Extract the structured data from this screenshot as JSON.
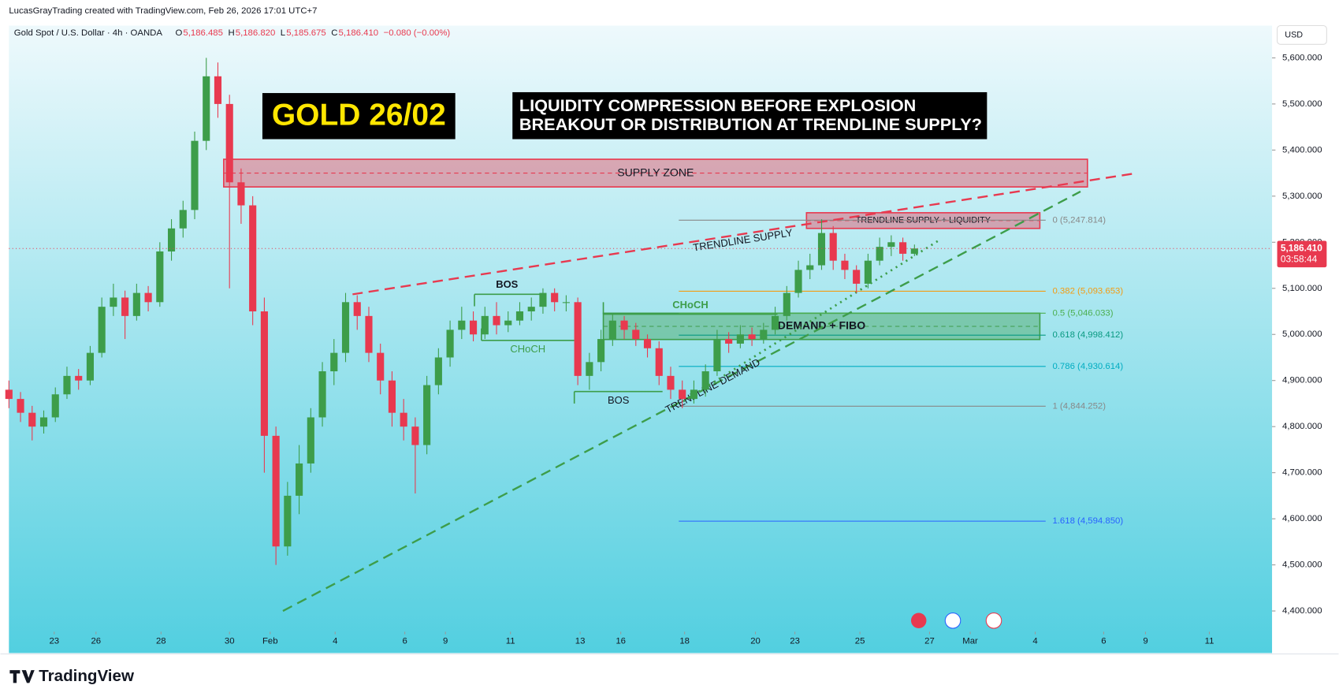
{
  "header": {
    "credit": "LucasGrayTrading created with TradingView.com, Feb 26, 2026 17:01 UTC+7",
    "symbol": "Gold Spot / U.S. Dollar · 4h · OANDA",
    "ohlc": [
      {
        "k": "O",
        "v": "5,186.485"
      },
      {
        "k": "H",
        "v": "5,186.820"
      },
      {
        "k": "L",
        "v": "5,185.675"
      },
      {
        "k": "C",
        "v": "5,186.410"
      }
    ],
    "change": "−0.080 (−0.00%)",
    "currency": "USD"
  },
  "footer": {
    "brand": "TradingView"
  },
  "chart_data": {
    "type": "candlestick",
    "title": "GOLD 26/02",
    "subtitle": [
      "LIQUIDITY COMPRESSION BEFORE EXPLOSION",
      "BREAKOUT OR DISTRIBUTION AT TRENDLINE SUPPLY?"
    ],
    "up_color": "#3d9d4a",
    "down_color": "#e8394f",
    "ohlc": [
      [
        4880,
        4900,
        4840,
        4860
      ],
      [
        4860,
        4875,
        4810,
        4830
      ],
      [
        4830,
        4845,
        4770,
        4800
      ],
      [
        4800,
        4835,
        4785,
        4820
      ],
      [
        4820,
        4885,
        4810,
        4870
      ],
      [
        4870,
        4930,
        4860,
        4910
      ],
      [
        4910,
        4925,
        4880,
        4900
      ],
      [
        4900,
        4975,
        4890,
        4960
      ],
      [
        4960,
        5080,
        4950,
        5060
      ],
      [
        5060,
        5110,
        5040,
        5080
      ],
      [
        5080,
        5095,
        4990,
        5040
      ],
      [
        5040,
        5110,
        5030,
        5090
      ],
      [
        5090,
        5105,
        5050,
        5070
      ],
      [
        5070,
        5200,
        5060,
        5180
      ],
      [
        5180,
        5250,
        5160,
        5230
      ],
      [
        5230,
        5290,
        5210,
        5270
      ],
      [
        5270,
        5440,
        5250,
        5420
      ],
      [
        5420,
        5600,
        5400,
        5560
      ],
      [
        5560,
        5590,
        5470,
        5500
      ],
      [
        5500,
        5520,
        5100,
        5330
      ],
      [
        5330,
        5360,
        5240,
        5280
      ],
      [
        5280,
        5300,
        5020,
        5050
      ],
      [
        5050,
        5080,
        4700,
        4780
      ],
      [
        4780,
        4800,
        4500,
        4540
      ],
      [
        4540,
        4680,
        4520,
        4650
      ],
      [
        4650,
        4760,
        4610,
        4720
      ],
      [
        4720,
        4840,
        4700,
        4820
      ],
      [
        4820,
        4940,
        4800,
        4920
      ],
      [
        4920,
        4990,
        4890,
        4960
      ],
      [
        4960,
        5090,
        4940,
        5070
      ],
      [
        5070,
        5085,
        5010,
        5040
      ],
      [
        5040,
        5060,
        4940,
        4960
      ],
      [
        4960,
        4980,
        4870,
        4900
      ],
      [
        4900,
        4920,
        4800,
        4830
      ],
      [
        4830,
        4860,
        4770,
        4800
      ],
      [
        4800,
        4820,
        4655,
        4760
      ],
      [
        4760,
        4910,
        4740,
        4890
      ],
      [
        4890,
        4970,
        4870,
        4950
      ],
      [
        4950,
        5030,
        4930,
        5010
      ],
      [
        5010,
        5060,
        4990,
        5030
      ],
      [
        5030,
        5050,
        4985,
        5000
      ],
      [
        5000,
        5060,
        4990,
        5040
      ],
      [
        5040,
        5070,
        5000,
        5020
      ],
      [
        5020,
        5050,
        5005,
        5030
      ],
      [
        5030,
        5070,
        5020,
        5050
      ],
      [
        5050,
        5080,
        5030,
        5060
      ],
      [
        5060,
        5100,
        5045,
        5090
      ],
      [
        5090,
        5100,
        5050,
        5070
      ],
      [
        5070,
        5085,
        5050,
        5070
      ],
      [
        5070,
        5080,
        4890,
        4910
      ],
      [
        4910,
        4960,
        4880,
        4940
      ],
      [
        4940,
        5010,
        4920,
        4990
      ],
      [
        4990,
        5045,
        4975,
        5030
      ],
      [
        5030,
        5040,
        4990,
        5010
      ],
      [
        5010,
        5025,
        4975,
        4990
      ],
      [
        4990,
        5000,
        4950,
        4970
      ],
      [
        4970,
        4985,
        4890,
        4910
      ],
      [
        4910,
        4930,
        4860,
        4880
      ],
      [
        4880,
        4900,
        4840,
        4860
      ],
      [
        4860,
        4900,
        4850,
        4880
      ],
      [
        4880,
        4935,
        4865,
        4920
      ],
      [
        4920,
        5010,
        4910,
        4990
      ],
      [
        4990,
        5005,
        4960,
        4980
      ],
      [
        4980,
        5020,
        4970,
        5000
      ],
      [
        5000,
        5015,
        4975,
        4990
      ],
      [
        4990,
        5025,
        4980,
        5010
      ],
      [
        5010,
        5060,
        5000,
        5040
      ],
      [
        5040,
        5105,
        5030,
        5090
      ],
      [
        5090,
        5160,
        5080,
        5140
      ],
      [
        5140,
        5175,
        5120,
        5150
      ],
      [
        5150,
        5250,
        5140,
        5220
      ],
      [
        5220,
        5235,
        5140,
        5160
      ],
      [
        5160,
        5175,
        5120,
        5140
      ],
      [
        5140,
        5150,
        5090,
        5110
      ],
      [
        5110,
        5175,
        5100,
        5160
      ],
      [
        5160,
        5210,
        5150,
        5190
      ],
      [
        5190,
        5215,
        5170,
        5200
      ],
      [
        5200,
        5210,
        5160,
        5175
      ],
      [
        5175,
        5195,
        5170,
        5186.41
      ]
    ],
    "xlim": [
      0,
      108.8
    ],
    "ylim": [
      4355,
      5670
    ],
    "xticks": [
      {
        "value": 3.9,
        "label": "23"
      },
      {
        "value": 7.5,
        "label": "26"
      },
      {
        "value": 13.1,
        "label": "28"
      },
      {
        "value": 19,
        "label": "30"
      },
      {
        "value": 22.5,
        "label": "Feb"
      },
      {
        "value": 28.1,
        "label": "4"
      },
      {
        "value": 34.1,
        "label": "6"
      },
      {
        "value": 37.6,
        "label": "9"
      },
      {
        "value": 43.2,
        "label": "11"
      },
      {
        "value": 49.2,
        "label": "13"
      },
      {
        "value": 52.7,
        "label": "16"
      },
      {
        "value": 58.2,
        "label": "18"
      },
      {
        "value": 64.3,
        "label": "20"
      },
      {
        "value": 67.7,
        "label": "23"
      },
      {
        "value": 73.3,
        "label": "25"
      },
      {
        "value": 79.3,
        "label": "27"
      },
      {
        "value": 82.8,
        "label": "Mar"
      },
      {
        "value": 88.4,
        "label": "4"
      },
      {
        "value": 94.3,
        "label": "6"
      },
      {
        "value": 97.9,
        "label": "9"
      },
      {
        "value": 103.4,
        "label": "11"
      }
    ],
    "yticks": [
      {
        "value": 4400,
        "label": "4,400.000"
      },
      {
        "value": 4500,
        "label": "4,500.000"
      },
      {
        "value": 4600,
        "label": "4,600.000"
      },
      {
        "value": 4700,
        "label": "4,700.000"
      },
      {
        "value": 4800,
        "label": "4,800.000"
      },
      {
        "value": 4900,
        "label": "4,900.000"
      },
      {
        "value": 5000,
        "label": "5,000.000"
      },
      {
        "value": 5100,
        "label": "5,100.000"
      },
      {
        "value": 5200,
        "label": "5,200.000"
      },
      {
        "value": 5300,
        "label": "5,300.000"
      },
      {
        "value": 5400,
        "label": "5,400.000"
      },
      {
        "value": 5500,
        "label": "5,500.000"
      },
      {
        "value": 5600,
        "label": "5,600.000"
      }
    ],
    "last_price": {
      "value": 5186.41,
      "label": "5,186.410",
      "countdown": "03:58:44"
    },
    "zones": [
      {
        "label": "SUPPLY ZONE",
        "top": 5380,
        "bottom": 5320,
        "start": 18.5,
        "end": 92.9,
        "color": "#e8394f"
      },
      {
        "label": "TRENDLINE SUPPLY + LIQUIDITY",
        "top": 5264,
        "bottom": 5230,
        "start": 68.7,
        "end": 88.8,
        "color": "#e8394f"
      },
      {
        "label": "DEMAND + FIBO",
        "top": 5046,
        "bottom": 4989,
        "start": 51.2,
        "end": 88.8,
        "color": "#3d9d4a"
      }
    ],
    "trendlines": [
      {
        "label": "TRENDLINE SUPPLY",
        "x": [
          29.6,
          96.9
        ],
        "y": [
          5087,
          5349
        ],
        "color": "#e8394f",
        "style": "dashed"
      },
      {
        "label": "TRENDLINE DEMAND",
        "x": [
          23.6,
          92.3
        ],
        "y": [
          4400,
          5310
        ],
        "color": "#3d9d4a",
        "style": "dashed"
      },
      {
        "x": [
          58.1,
          80.1
        ],
        "y": [
          4855,
          5204
        ],
        "color": "#3d9d4a",
        "style": "dotted"
      }
    ],
    "structure": [
      {
        "label": "BOS",
        "level": 5087,
        "start": 40.1,
        "end": 45.7,
        "color": "#3d9d4a"
      },
      {
        "label": "CHoCH",
        "level": 4987,
        "start": 40.7,
        "end": 48.7,
        "color": "#3d9d4a"
      },
      {
        "label": "BOS",
        "level": 4876,
        "start": 48.7,
        "end": 56.3,
        "color": "#3d9d4a"
      },
      {
        "label": "CHoCH",
        "level": 5044,
        "start": 51.2,
        "end": 66.2,
        "color": "#3d9d4a"
      }
    ],
    "fib": {
      "start": 57.7,
      "end": 89.3,
      "levels": [
        {
          "label": "0 (5,247.814)",
          "value": 5247.814,
          "color": "#888888"
        },
        {
          "label": "0.382 (5,093.653)",
          "value": 5093.653,
          "color": "#f39c12"
        },
        {
          "label": "0.5 (5,046.033)",
          "value": 5046.033,
          "color": "#4caf50"
        },
        {
          "label": "0.618 (4,998.412)",
          "value": 4998.412,
          "color": "#089981"
        },
        {
          "label": "0.786 (4,930.614)",
          "value": 4930.614,
          "color": "#00acc1"
        },
        {
          "label": "1 (4,844.252)",
          "value": 4844.252,
          "color": "#888888"
        },
        {
          "label": "1.618 (4,594.850)",
          "value": 4594.85,
          "color": "#2962ff"
        }
      ]
    }
  }
}
